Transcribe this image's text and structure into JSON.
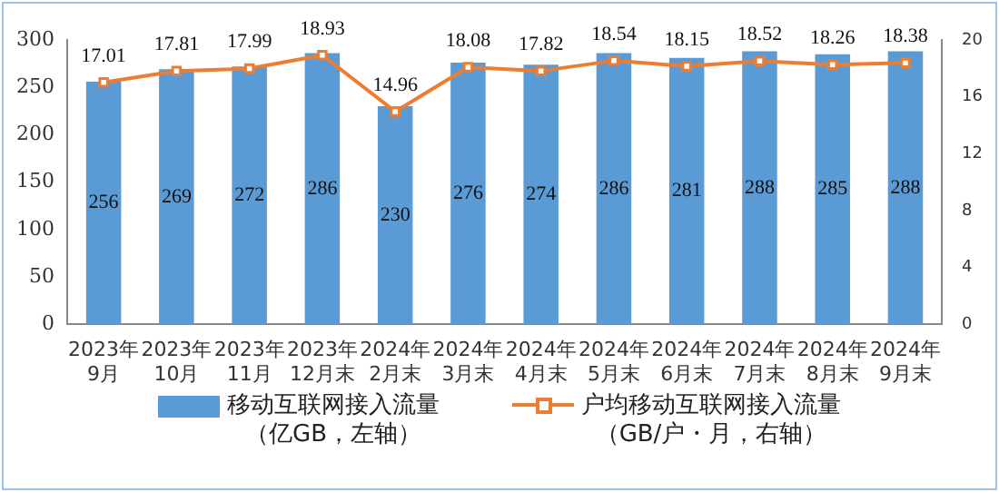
{
  "chart_data": {
    "type": "bar",
    "categories": [
      "2023年\n9月",
      "2023年\n10月",
      "2023年\n11月",
      "2023年\n12月末",
      "2024年\n2月末",
      "2024年\n3月末",
      "2024年\n4月末",
      "2024年\n5月末",
      "2024年\n6月末",
      "2024年\n7月末",
      "2024年\n8月末",
      "2024年\n9月末"
    ],
    "series": [
      {
        "name": "移动互联网接入流量（亿GB，左轴）",
        "color": "#5b9bd5",
        "values": [
          256,
          269,
          272,
          286,
          230,
          276,
          274,
          286,
          281,
          288,
          285,
          288
        ]
      },
      {
        "name": "户均移动互联网接入流量（GB/户・月，右轴）",
        "type": "line",
        "axis": "y2",
        "color": "#ed7d31",
        "marker": "square",
        "values": [
          17.01,
          17.81,
          17.99,
          18.93,
          14.96,
          18.08,
          17.82,
          18.54,
          18.15,
          18.52,
          18.26,
          18.38
        ]
      }
    ],
    "ylim": [
      0,
      300
    ],
    "yticks": [
      0,
      50,
      100,
      150,
      200,
      250,
      300
    ],
    "y2lim": [
      0,
      20
    ],
    "y2ticks": [
      0,
      4,
      8,
      12,
      16,
      20
    ],
    "grid": false,
    "legend": "bottom",
    "data_labels": true
  }
}
